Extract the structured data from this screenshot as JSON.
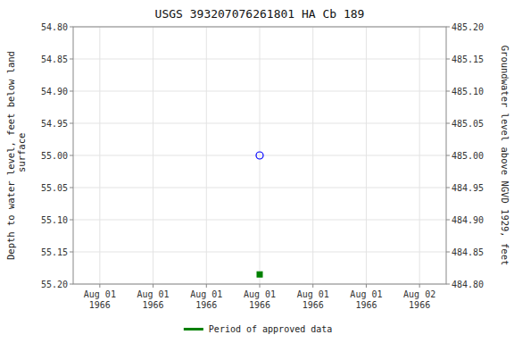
{
  "chart_data": {
    "type": "scatter",
    "title": "USGS 393207076261801 HA Cb 189",
    "ylabel": "Depth to water level, feet below land\n surface",
    "y2label": "Groundwater level above NGVD 1929, feet",
    "categories": [
      "Aug 01\n1966",
      "Aug 01\n1966",
      "Aug 01\n1966",
      "Aug 01\n1966",
      "Aug 01\n1966",
      "Aug 01\n1966",
      "Aug 02\n1966"
    ],
    "series": [
      {
        "values": [
          null,
          null,
          null,
          55.0,
          null,
          null,
          null
        ],
        "color": "blue",
        "marker": "open-circle"
      },
      {
        "name": "Period of approved data",
        "values": [
          null,
          null,
          null,
          55.185,
          null,
          null,
          null
        ],
        "color": "green",
        "marker": "square"
      }
    ],
    "ylim": [
      55.2,
      54.8
    ],
    "yticks": [
      {
        "value": 54.8,
        "label": "54.80"
      },
      54.85,
      {
        "value": 54.9,
        "label": "54.90"
      },
      54.95,
      {
        "value": 55.0,
        "label": "55.00"
      },
      55.05,
      {
        "value": 55.1,
        "label": "55.10"
      },
      55.15,
      {
        "value": 55.2,
        "label": "55.20"
      }
    ],
    "y2lim": [
      484.8,
      485.2
    ],
    "y2ticks": [
      {
        "value": 485.2,
        "label": "485.20"
      },
      485.15,
      {
        "value": 485.1,
        "label": "485.10"
      },
      485.05,
      {
        "value": 485.0,
        "label": "485.00"
      },
      484.95,
      {
        "value": 484.9,
        "label": "484.90"
      },
      484.85,
      {
        "value": 484.8,
        "label": "484.80"
      }
    ],
    "grid": true,
    "legend": "bottom"
  }
}
